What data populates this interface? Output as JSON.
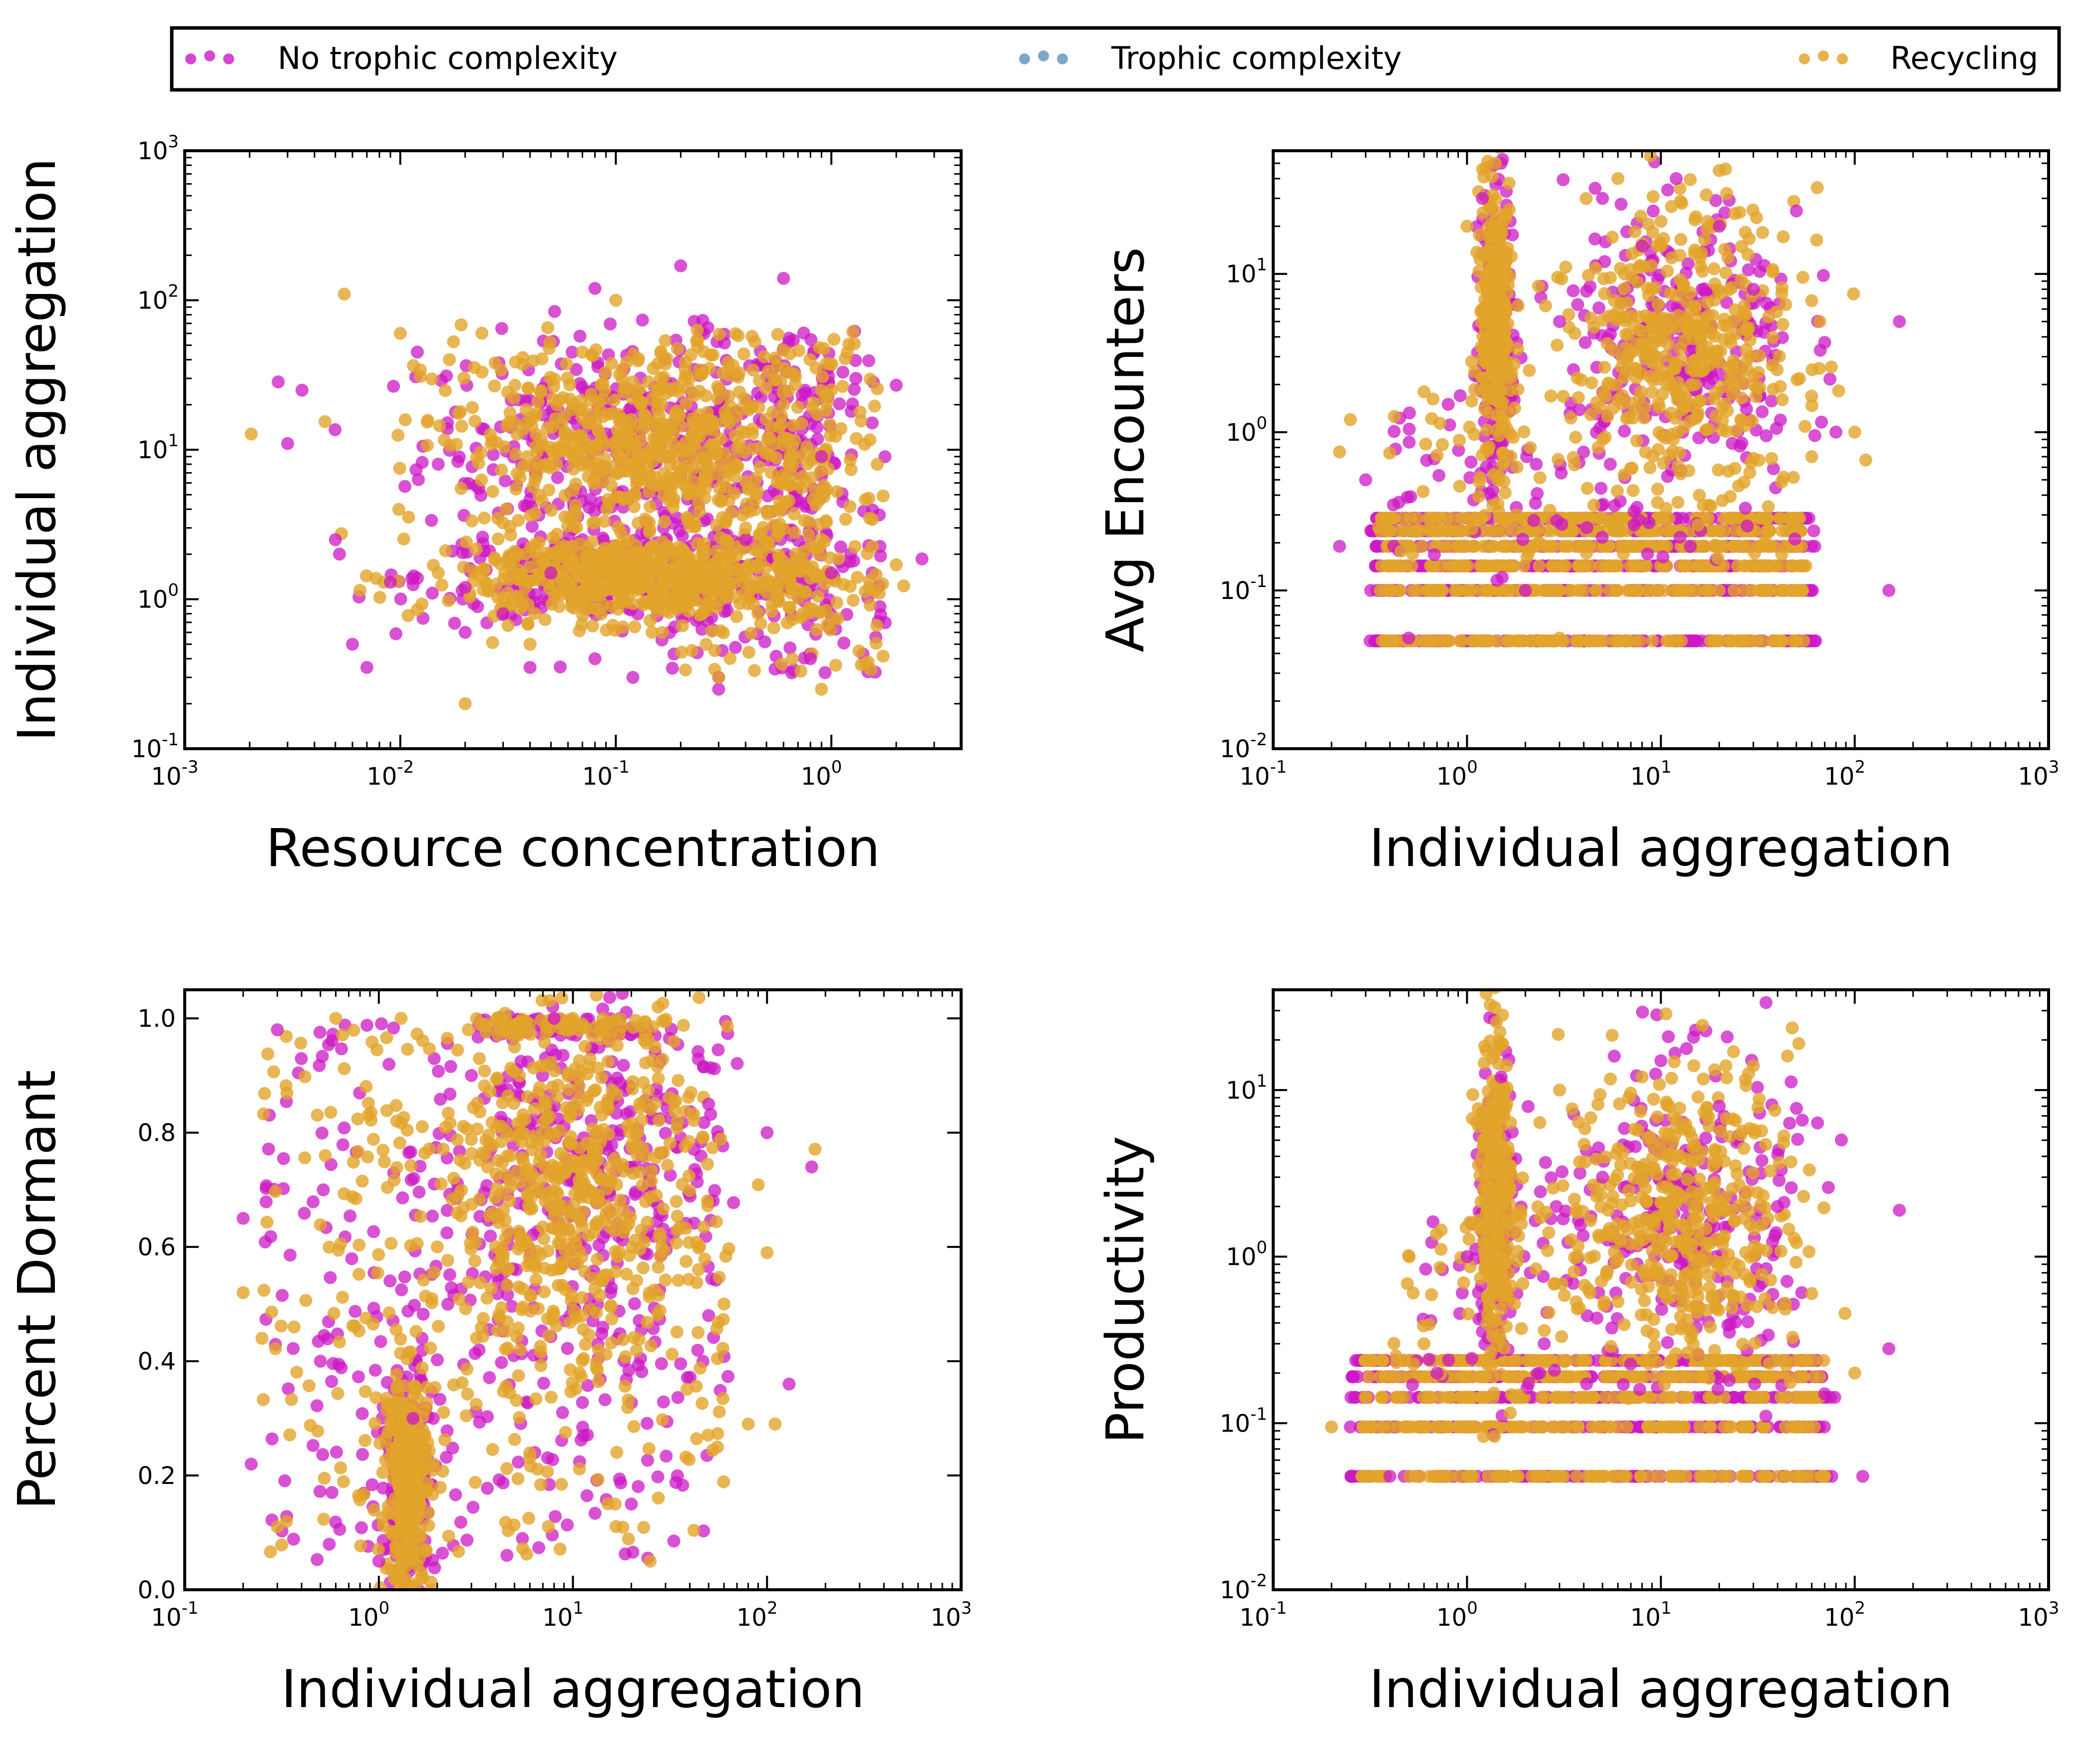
{
  "colors": {
    "no_trophic": "#cc18c4",
    "trophic": "#6f9dc2",
    "recycling": "#e2a42a",
    "axes": "#000000",
    "background": "#ffffff"
  },
  "legend": {
    "placement": "top",
    "items": [
      {
        "label": "No trophic complexity",
        "color": "#cc18c4"
      },
      {
        "label": "Trophic complexity",
        "color": "#6f9dc2"
      },
      {
        "label": "Recycling",
        "color": "#e2a42a"
      }
    ]
  },
  "chart_data": [
    {
      "type": "scatter",
      "xlabel": "Resource concentration",
      "ylabel": "Individual aggregation",
      "xscale": "log",
      "yscale": "log",
      "xlim": [
        0.001,
        4
      ],
      "ylim": [
        0.1,
        1000
      ],
      "xticks": [
        {
          "base": "10",
          "exp": "-3",
          "value": 0.001
        },
        {
          "base": "10",
          "exp": "-2",
          "value": 0.01
        },
        {
          "base": "10",
          "exp": "-1",
          "value": 0.1
        },
        {
          "base": "10",
          "exp": "0",
          "value": 1
        }
      ],
      "yticks": [
        {
          "base": "10",
          "exp": "-1",
          "value": 0.1
        },
        {
          "base": "10",
          "exp": "0",
          "value": 1
        },
        {
          "base": "10",
          "exp": "1",
          "value": 10
        },
        {
          "base": "10",
          "exp": "2",
          "value": 100
        },
        {
          "base": "10",
          "exp": "3",
          "value": 1000
        }
      ],
      "series": [
        {
          "name": "No trophic complexity",
          "color": "#cc18c4",
          "x": [
            0.003,
            0.0035,
            0.006,
            0.007,
            0.009,
            0.012,
            0.015,
            0.02,
            0.03,
            0.04,
            0.05,
            0.08,
            0.12,
            0.2,
            0.3,
            0.4,
            0.6,
            0.8,
            1.0,
            1.3,
            2.0,
            0.005,
            0.02,
            0.08,
            0.3,
            0.9
          ],
          "y": [
            11,
            25,
            0.5,
            0.35,
            1.3,
            45,
            8,
            1.2,
            0.8,
            0.35,
            1.5,
            120,
            0.3,
            170,
            0.25,
            2.5,
            140,
            0.4,
            1.5,
            30,
            27,
            2.5,
            0.6,
            0.4,
            0.3,
            9
          ]
        },
        {
          "name": "Recycling",
          "color": "#e2a42a",
          "x": [
            0.0055,
            0.01,
            0.015,
            0.02,
            0.03,
            0.05,
            0.07,
            0.1,
            0.15,
            0.25,
            0.4,
            0.6,
            0.9,
            1.5,
            2.0,
            0.012,
            0.04,
            0.3
          ],
          "y": [
            110,
            60,
            1.5,
            0.2,
            1.0,
            2.0,
            45,
            100,
            12,
            8,
            3,
            20,
            0.25,
            1.2,
            1.7,
            0.85,
            0.5,
            0.3
          ]
        }
      ]
    },
    {
      "type": "scatter",
      "xlabel": "Individual aggregation",
      "ylabel": "Avg Encounters",
      "xscale": "log",
      "yscale": "log",
      "xlim": [
        0.1,
        1000
      ],
      "ylim": [
        0.01,
        60
      ],
      "xticks": [
        {
          "base": "10",
          "exp": "-1",
          "value": 0.1
        },
        {
          "base": "10",
          "exp": "0",
          "value": 1
        },
        {
          "base": "10",
          "exp": "1",
          "value": 10
        },
        {
          "base": "10",
          "exp": "2",
          "value": 100
        },
        {
          "base": "10",
          "exp": "3",
          "value": 1000
        }
      ],
      "yticks": [
        {
          "base": "10",
          "exp": "-2",
          "value": 0.01
        },
        {
          "base": "10",
          "exp": "-1",
          "value": 0.1
        },
        {
          "base": "10",
          "exp": "0",
          "value": 1
        },
        {
          "base": "10",
          "exp": "1",
          "value": 10
        }
      ],
      "series": [
        {
          "name": "No trophic complexity",
          "color": "#cc18c4",
          "x": [
            0.22,
            0.3,
            0.5,
            0.8,
            1.2,
            1.5,
            2.0,
            3.0,
            5.0,
            8.0,
            12,
            20,
            30,
            50,
            80,
            150,
            170
          ],
          "y": [
            0.19,
            0.5,
            0.05,
            1.5,
            30,
            50,
            0.1,
            5,
            30,
            15,
            40,
            20,
            8,
            25,
            1.0,
            0.1,
            5
          ]
        },
        {
          "name": "Recycling",
          "color": "#e2a42a",
          "x": [
            0.22,
            0.25,
            0.35,
            0.6,
            1.0,
            1.4,
            1.8,
            3.0,
            6.0,
            10,
            20,
            30,
            60,
            100
          ],
          "y": [
            0.75,
            1.2,
            0.25,
            1.8,
            20,
            50,
            0.3,
            0.05,
            40,
            5,
            45,
            2,
            0.7,
            1.0
          ]
        }
      ],
      "bands": [
        0.048,
        0.1,
        0.143,
        0.19,
        0.238,
        0.286
      ]
    },
    {
      "type": "scatter",
      "xlabel": "Individual aggregation",
      "ylabel": "Percent Dormant",
      "xscale": "log",
      "yscale": "linear",
      "xlim": [
        0.1,
        1000
      ],
      "ylim": [
        0.0,
        1.05
      ],
      "xticks": [
        {
          "base": "10",
          "exp": "-1",
          "value": 0.1
        },
        {
          "base": "10",
          "exp": "0",
          "value": 1
        },
        {
          "base": "10",
          "exp": "1",
          "value": 10
        },
        {
          "base": "10",
          "exp": "2",
          "value": 100
        },
        {
          "base": "10",
          "exp": "3",
          "value": 1000
        }
      ],
      "yticks": [
        {
          "label": "0.0",
          "value": 0.0
        },
        {
          "label": "0.2",
          "value": 0.2
        },
        {
          "label": "0.4",
          "value": 0.4
        },
        {
          "label": "0.6",
          "value": 0.6
        },
        {
          "label": "0.8",
          "value": 0.8
        },
        {
          "label": "1.0",
          "value": 1.0
        }
      ],
      "series": [
        {
          "name": "No trophic complexity",
          "color": "#cc18c4",
          "x": [
            0.2,
            0.22,
            0.3,
            0.5,
            1.0,
            1.5,
            3,
            8,
            20,
            50,
            100,
            130,
            170
          ],
          "y": [
            0.65,
            0.22,
            0.98,
            0.4,
            0.05,
            0.3,
            0.9,
            1.0,
            0.15,
            0.85,
            0.8,
            0.36,
            0.74
          ]
        },
        {
          "name": "Recycling",
          "color": "#e2a42a",
          "x": [
            0.2,
            0.25,
            0.3,
            0.6,
            1.2,
            2.0,
            5,
            10,
            25,
            60,
            80,
            100,
            110
          ],
          "y": [
            0.52,
            0.44,
            0.11,
            1.0,
            0.02,
            0.6,
            0.95,
            1.0,
            0.05,
            0.5,
            0.29,
            0.59,
            0.29
          ]
        }
      ]
    },
    {
      "type": "scatter",
      "xlabel": "Individual aggregation",
      "ylabel": "Productivity",
      "xscale": "log",
      "yscale": "log",
      "xlim": [
        0.1,
        1000
      ],
      "ylim": [
        0.01,
        40
      ],
      "xticks": [
        {
          "base": "10",
          "exp": "-1",
          "value": 0.1
        },
        {
          "base": "10",
          "exp": "0",
          "value": 1
        },
        {
          "base": "10",
          "exp": "1",
          "value": 10
        },
        {
          "base": "10",
          "exp": "2",
          "value": 100
        },
        {
          "base": "10",
          "exp": "3",
          "value": 1000
        }
      ],
      "yticks": [
        {
          "base": "10",
          "exp": "-2",
          "value": 0.01
        },
        {
          "base": "10",
          "exp": "-1",
          "value": 0.1
        },
        {
          "base": "10",
          "exp": "0",
          "value": 1
        },
        {
          "base": "10",
          "exp": "1",
          "value": 10
        }
      ],
      "series": [
        {
          "name": "No trophic complexity",
          "color": "#cc18c4",
          "x": [
            0.25,
            0.4,
            0.7,
            1.0,
            1.5,
            2.5,
            5,
            10,
            20,
            40,
            70,
            110,
            150,
            170
          ],
          "y": [
            0.095,
            0.048,
            0.2,
            1.0,
            12,
            0.3,
            3,
            15,
            8,
            2,
            0.15,
            0.048,
            0.28,
            1.9
          ]
        },
        {
          "name": "Recycling",
          "color": "#e2a42a",
          "x": [
            0.2,
            0.3,
            0.6,
            1.2,
            1.6,
            3,
            8,
            15,
            30,
            45,
            60,
            100
          ],
          "y": [
            0.095,
            0.048,
            0.3,
            4,
            14,
            10,
            12,
            0.5,
            14,
            16,
            0.6,
            0.2
          ]
        }
      ],
      "bands": [
        0.048,
        0.095,
        0.143,
        0.19,
        0.238
      ]
    }
  ]
}
